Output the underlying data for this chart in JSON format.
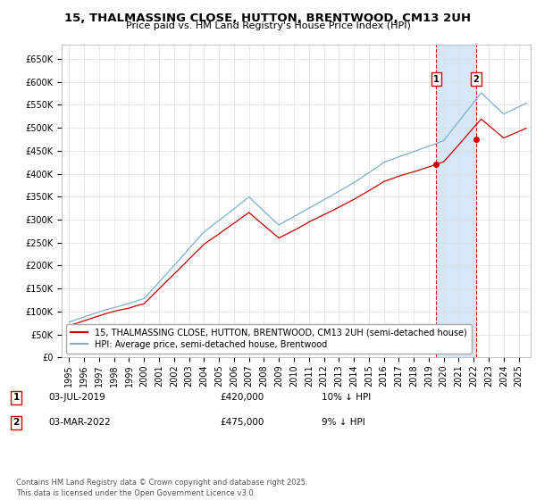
{
  "title": "15, THALMASSING CLOSE, HUTTON, BRENTWOOD, CM13 2UH",
  "subtitle": "Price paid vs. HM Land Registry's House Price Index (HPI)",
  "legend_line1": "15, THALMASSING CLOSE, HUTTON, BRENTWOOD, CM13 2UH (semi-detached house)",
  "legend_line2": "HPI: Average price, semi-detached house, Brentwood",
  "annotation1_label": "1",
  "annotation1_date": "03-JUL-2019",
  "annotation1_price": "£420,000",
  "annotation1_hpi": "10% ↓ HPI",
  "annotation2_label": "2",
  "annotation2_date": "03-MAR-2022",
  "annotation2_price": "£475,000",
  "annotation2_hpi": "9% ↓ HPI",
  "footnote": "Contains HM Land Registry data © Crown copyright and database right 2025.\nThis data is licensed under the Open Government Licence v3.0.",
  "sale1_year": 2019.5,
  "sale1_price": 420000,
  "sale2_year": 2022.17,
  "sale2_price": 475000,
  "hpi_line_color": "#7bafd4",
  "price_line_color": "#cc0000",
  "sale_dot_color": "#cc0000",
  "vline_color": "#cc0000",
  "shaded_region_color": "#d6e8f7",
  "ylim_min": 0,
  "ylim_max": 680000,
  "xlim_min": 1994.5,
  "xlim_max": 2025.8,
  "grid_color": "#dddddd",
  "background_color": "#ffffff",
  "title_fontsize": 9.5,
  "subtitle_fontsize": 8,
  "tick_fontsize": 7,
  "legend_fontsize": 7,
  "annotation_fontsize": 7.5,
  "footnote_fontsize": 6
}
